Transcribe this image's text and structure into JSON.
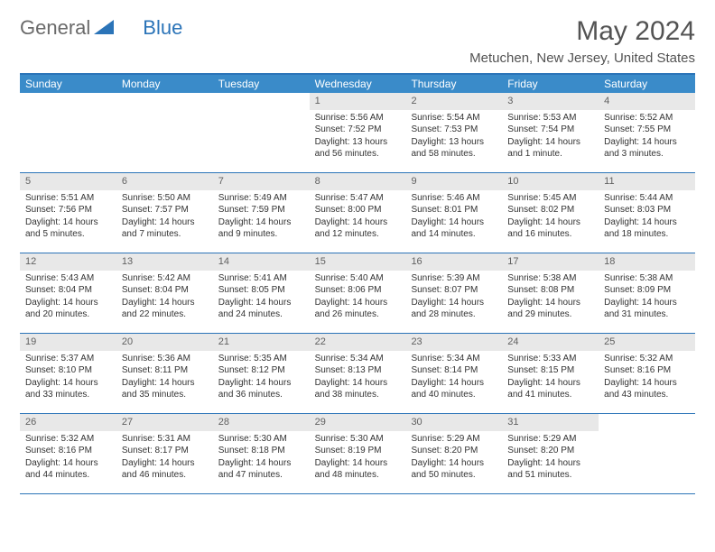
{
  "logo": {
    "part1": "General",
    "part2": "Blue"
  },
  "title": "May 2024",
  "location": "Metuchen, New Jersey, United States",
  "header_bg": "#3a8bc9",
  "border_color": "#2b74b8",
  "daynum_bg": "#e8e8e8",
  "font_size_body": 10,
  "day_names": [
    "Sunday",
    "Monday",
    "Tuesday",
    "Wednesday",
    "Thursday",
    "Friday",
    "Saturday"
  ],
  "weeks": [
    [
      {
        "n": "",
        "empty": true
      },
      {
        "n": "",
        "empty": true
      },
      {
        "n": "",
        "empty": true
      },
      {
        "n": "1",
        "sr": "Sunrise: 5:56 AM",
        "ss": "Sunset: 7:52 PM",
        "dl": "Daylight: 13 hours and 56 minutes."
      },
      {
        "n": "2",
        "sr": "Sunrise: 5:54 AM",
        "ss": "Sunset: 7:53 PM",
        "dl": "Daylight: 13 hours and 58 minutes."
      },
      {
        "n": "3",
        "sr": "Sunrise: 5:53 AM",
        "ss": "Sunset: 7:54 PM",
        "dl": "Daylight: 14 hours and 1 minute."
      },
      {
        "n": "4",
        "sr": "Sunrise: 5:52 AM",
        "ss": "Sunset: 7:55 PM",
        "dl": "Daylight: 14 hours and 3 minutes."
      }
    ],
    [
      {
        "n": "5",
        "sr": "Sunrise: 5:51 AM",
        "ss": "Sunset: 7:56 PM",
        "dl": "Daylight: 14 hours and 5 minutes."
      },
      {
        "n": "6",
        "sr": "Sunrise: 5:50 AM",
        "ss": "Sunset: 7:57 PM",
        "dl": "Daylight: 14 hours and 7 minutes."
      },
      {
        "n": "7",
        "sr": "Sunrise: 5:49 AM",
        "ss": "Sunset: 7:59 PM",
        "dl": "Daylight: 14 hours and 9 minutes."
      },
      {
        "n": "8",
        "sr": "Sunrise: 5:47 AM",
        "ss": "Sunset: 8:00 PM",
        "dl": "Daylight: 14 hours and 12 minutes."
      },
      {
        "n": "9",
        "sr": "Sunrise: 5:46 AM",
        "ss": "Sunset: 8:01 PM",
        "dl": "Daylight: 14 hours and 14 minutes."
      },
      {
        "n": "10",
        "sr": "Sunrise: 5:45 AM",
        "ss": "Sunset: 8:02 PM",
        "dl": "Daylight: 14 hours and 16 minutes."
      },
      {
        "n": "11",
        "sr": "Sunrise: 5:44 AM",
        "ss": "Sunset: 8:03 PM",
        "dl": "Daylight: 14 hours and 18 minutes."
      }
    ],
    [
      {
        "n": "12",
        "sr": "Sunrise: 5:43 AM",
        "ss": "Sunset: 8:04 PM",
        "dl": "Daylight: 14 hours and 20 minutes."
      },
      {
        "n": "13",
        "sr": "Sunrise: 5:42 AM",
        "ss": "Sunset: 8:04 PM",
        "dl": "Daylight: 14 hours and 22 minutes."
      },
      {
        "n": "14",
        "sr": "Sunrise: 5:41 AM",
        "ss": "Sunset: 8:05 PM",
        "dl": "Daylight: 14 hours and 24 minutes."
      },
      {
        "n": "15",
        "sr": "Sunrise: 5:40 AM",
        "ss": "Sunset: 8:06 PM",
        "dl": "Daylight: 14 hours and 26 minutes."
      },
      {
        "n": "16",
        "sr": "Sunrise: 5:39 AM",
        "ss": "Sunset: 8:07 PM",
        "dl": "Daylight: 14 hours and 28 minutes."
      },
      {
        "n": "17",
        "sr": "Sunrise: 5:38 AM",
        "ss": "Sunset: 8:08 PM",
        "dl": "Daylight: 14 hours and 29 minutes."
      },
      {
        "n": "18",
        "sr": "Sunrise: 5:38 AM",
        "ss": "Sunset: 8:09 PM",
        "dl": "Daylight: 14 hours and 31 minutes."
      }
    ],
    [
      {
        "n": "19",
        "sr": "Sunrise: 5:37 AM",
        "ss": "Sunset: 8:10 PM",
        "dl": "Daylight: 14 hours and 33 minutes."
      },
      {
        "n": "20",
        "sr": "Sunrise: 5:36 AM",
        "ss": "Sunset: 8:11 PM",
        "dl": "Daylight: 14 hours and 35 minutes."
      },
      {
        "n": "21",
        "sr": "Sunrise: 5:35 AM",
        "ss": "Sunset: 8:12 PM",
        "dl": "Daylight: 14 hours and 36 minutes."
      },
      {
        "n": "22",
        "sr": "Sunrise: 5:34 AM",
        "ss": "Sunset: 8:13 PM",
        "dl": "Daylight: 14 hours and 38 minutes."
      },
      {
        "n": "23",
        "sr": "Sunrise: 5:34 AM",
        "ss": "Sunset: 8:14 PM",
        "dl": "Daylight: 14 hours and 40 minutes."
      },
      {
        "n": "24",
        "sr": "Sunrise: 5:33 AM",
        "ss": "Sunset: 8:15 PM",
        "dl": "Daylight: 14 hours and 41 minutes."
      },
      {
        "n": "25",
        "sr": "Sunrise: 5:32 AM",
        "ss": "Sunset: 8:16 PM",
        "dl": "Daylight: 14 hours and 43 minutes."
      }
    ],
    [
      {
        "n": "26",
        "sr": "Sunrise: 5:32 AM",
        "ss": "Sunset: 8:16 PM",
        "dl": "Daylight: 14 hours and 44 minutes."
      },
      {
        "n": "27",
        "sr": "Sunrise: 5:31 AM",
        "ss": "Sunset: 8:17 PM",
        "dl": "Daylight: 14 hours and 46 minutes."
      },
      {
        "n": "28",
        "sr": "Sunrise: 5:30 AM",
        "ss": "Sunset: 8:18 PM",
        "dl": "Daylight: 14 hours and 47 minutes."
      },
      {
        "n": "29",
        "sr": "Sunrise: 5:30 AM",
        "ss": "Sunset: 8:19 PM",
        "dl": "Daylight: 14 hours and 48 minutes."
      },
      {
        "n": "30",
        "sr": "Sunrise: 5:29 AM",
        "ss": "Sunset: 8:20 PM",
        "dl": "Daylight: 14 hours and 50 minutes."
      },
      {
        "n": "31",
        "sr": "Sunrise: 5:29 AM",
        "ss": "Sunset: 8:20 PM",
        "dl": "Daylight: 14 hours and 51 minutes."
      },
      {
        "n": "",
        "empty": true
      }
    ]
  ]
}
